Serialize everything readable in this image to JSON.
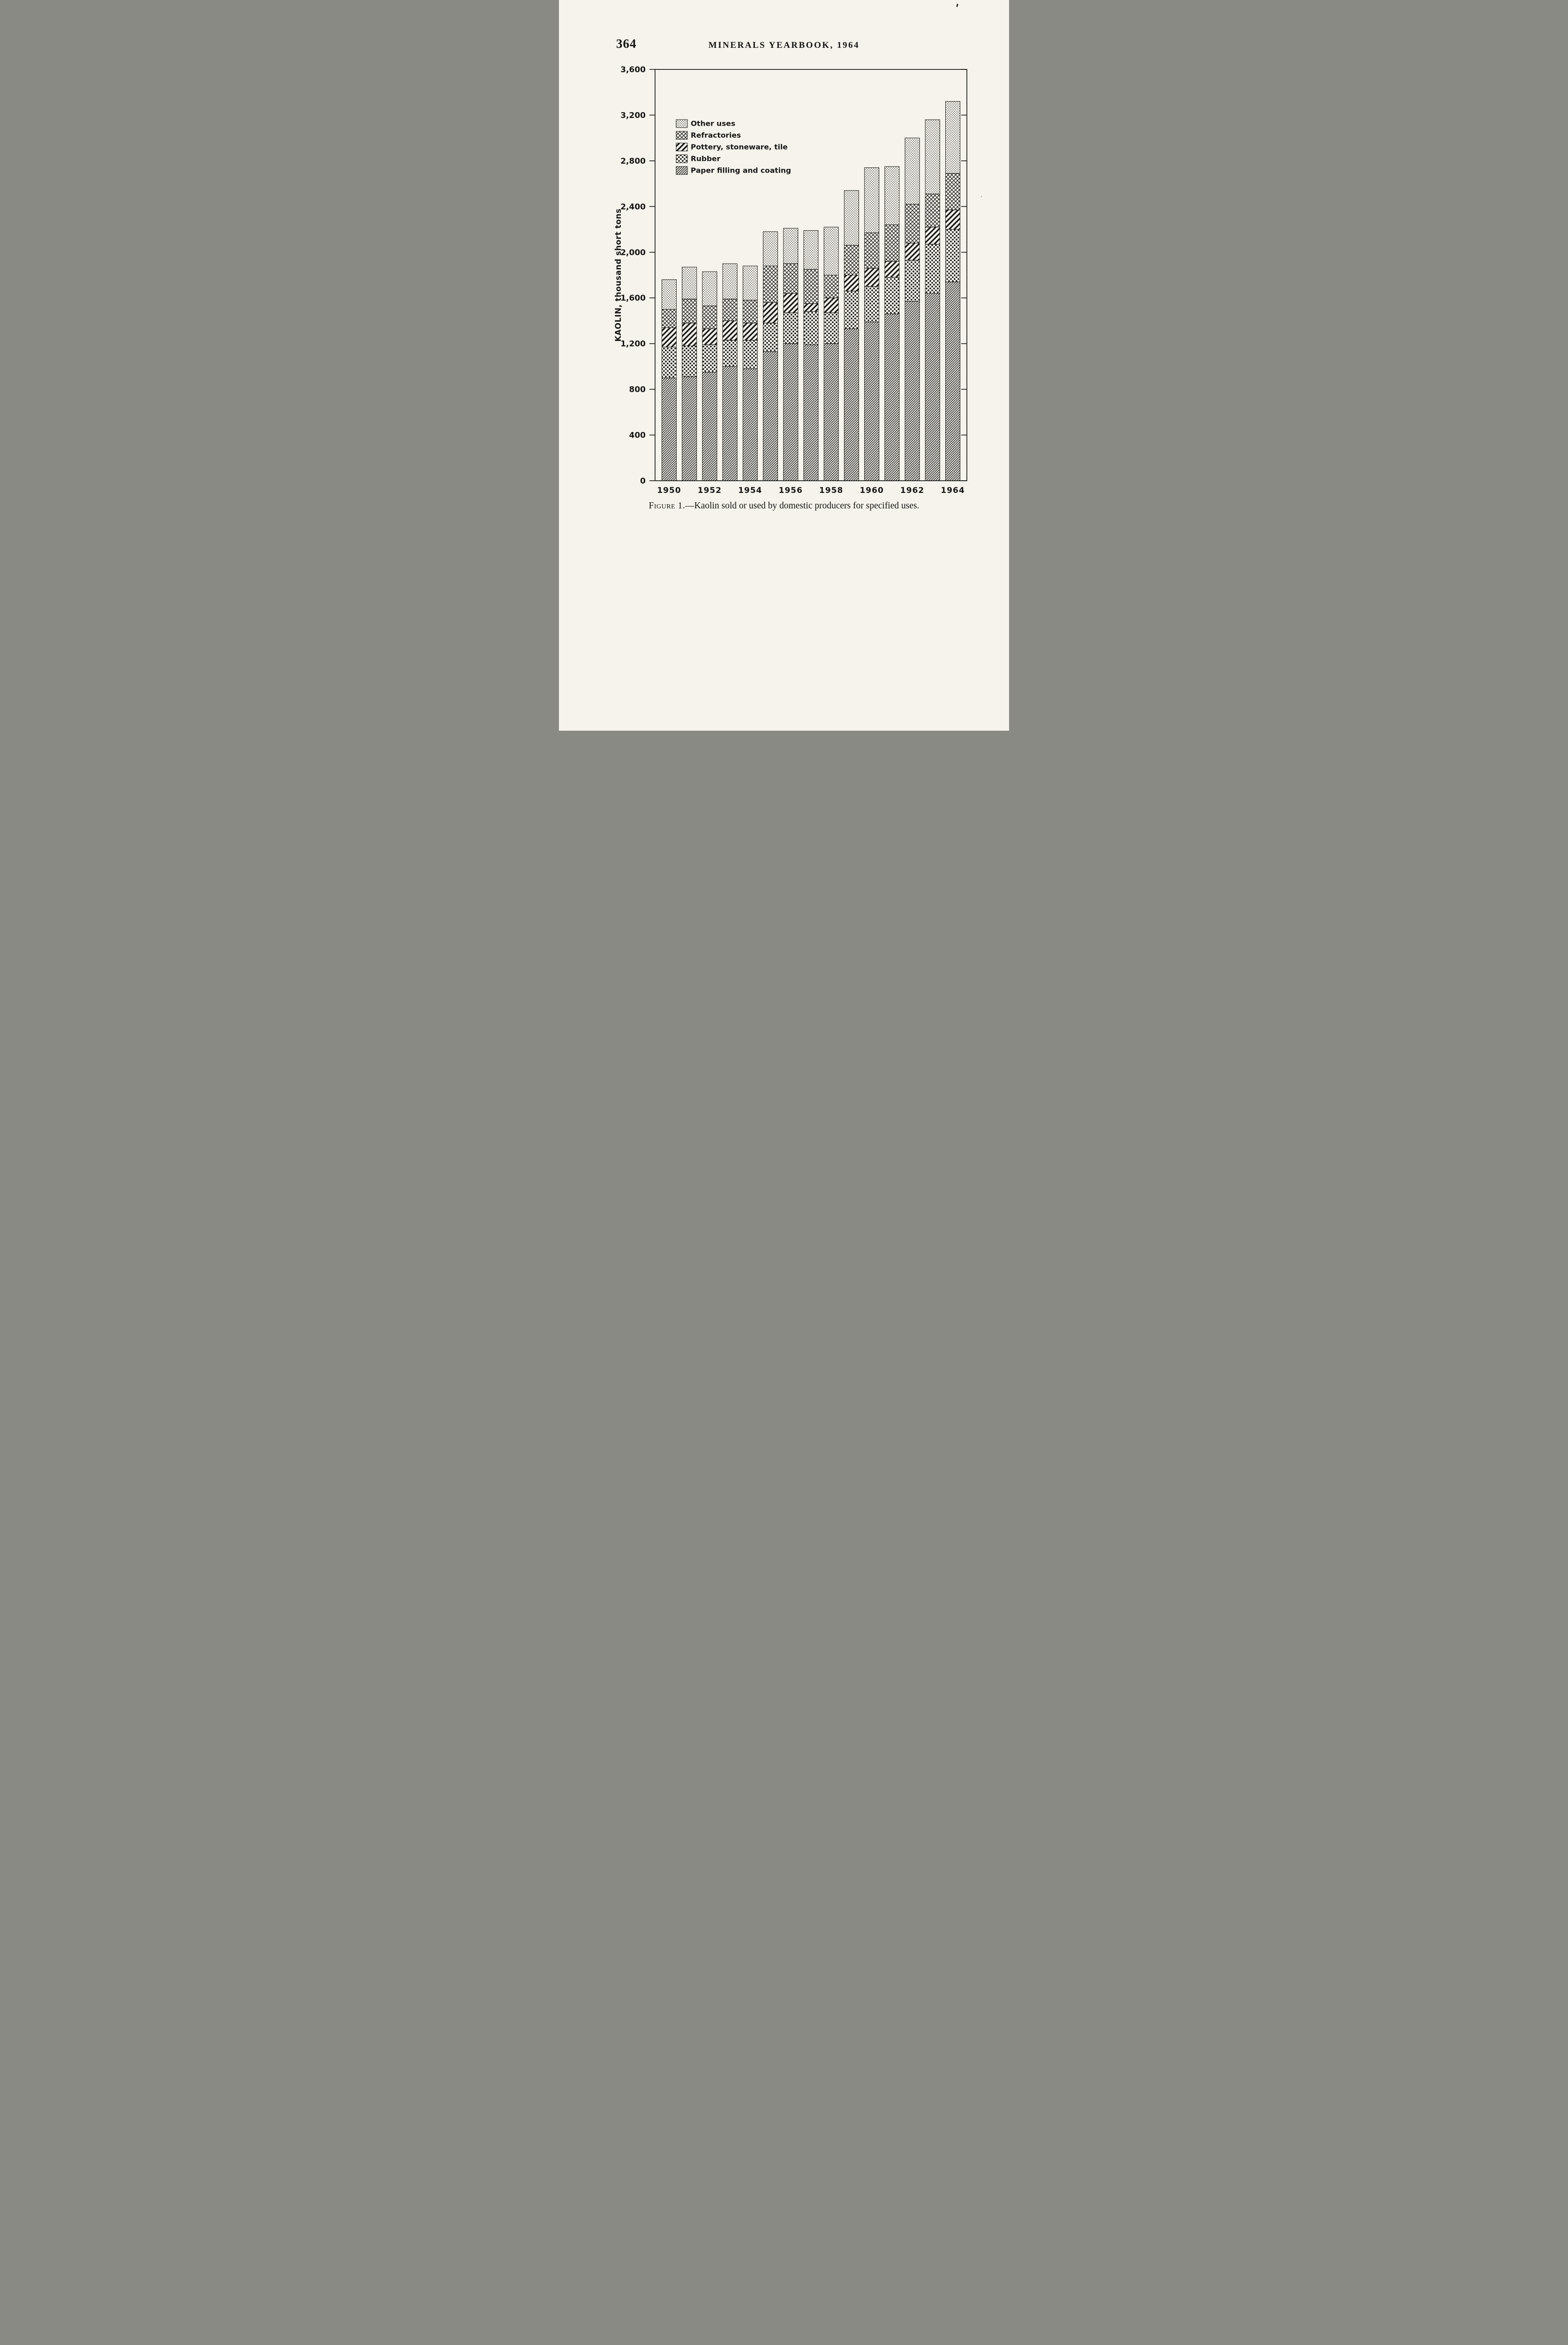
{
  "page": {
    "number": "364",
    "header": "MINERALS YEARBOOK, 1964",
    "caption_prefix": "Figure 1.",
    "caption_body": "—Kaolin sold or used by domestic producers for specified uses."
  },
  "chart": {
    "y_axis_title": "KAOLIN, thousand short tons",
    "ytick_labels": [
      "0",
      "400",
      "800",
      "1,200",
      "1,600",
      "2,000",
      "2,400",
      "2,800",
      "3,200",
      "3,600"
    ],
    "legend": [
      {
        "label": "Other uses",
        "pattern": "stipple"
      },
      {
        "label": "Refractories",
        "pattern": "crosshatch"
      },
      {
        "label": "Pottery, stoneware, tile",
        "pattern": "stripes"
      },
      {
        "label": "Rubber",
        "pattern": "dots"
      },
      {
        "label": "Paper filling and coating",
        "pattern": "hatch"
      }
    ]
  },
  "chart_data": {
    "type": "bar",
    "stacked": true,
    "title": "",
    "xlabel": "",
    "ylabel": "KAOLIN, thousand short tons",
    "ylim": [
      0,
      3600
    ],
    "ytick_step": 400,
    "grid": false,
    "legend_position": "top-left-inside",
    "categories": [
      "1950",
      "1951",
      "1952",
      "1953",
      "1954",
      "1955",
      "1956",
      "1957",
      "1958",
      "1959",
      "1960",
      "1961",
      "1962",
      "1963",
      "1964"
    ],
    "x_tick_labels_shown": [
      "1950",
      "1952",
      "1954",
      "1956",
      "1958",
      "1960",
      "1962",
      "1964"
    ],
    "series": [
      {
        "name": "Paper filling and coating",
        "pattern": "hatch",
        "values": [
          900,
          910,
          950,
          1000,
          980,
          1130,
          1200,
          1190,
          1200,
          1330,
          1390,
          1460,
          1570,
          1640,
          1740
        ]
      },
      {
        "name": "Rubber",
        "pattern": "dots",
        "values": [
          270,
          270,
          240,
          230,
          250,
          250,
          270,
          290,
          270,
          330,
          310,
          320,
          360,
          430,
          460
        ]
      },
      {
        "name": "Pottery, stoneware, tile",
        "pattern": "stripes",
        "values": [
          170,
          200,
          140,
          170,
          150,
          180,
          170,
          70,
          130,
          140,
          160,
          140,
          150,
          150,
          170
        ]
      },
      {
        "name": "Refractories",
        "pattern": "crosshatch",
        "values": [
          160,
          210,
          200,
          190,
          200,
          320,
          260,
          300,
          200,
          260,
          310,
          320,
          340,
          290,
          320
        ]
      },
      {
        "name": "Other uses",
        "pattern": "stipple",
        "values": [
          260,
          280,
          300,
          310,
          300,
          300,
          310,
          340,
          420,
          480,
          570,
          510,
          580,
          650,
          630
        ]
      }
    ]
  }
}
